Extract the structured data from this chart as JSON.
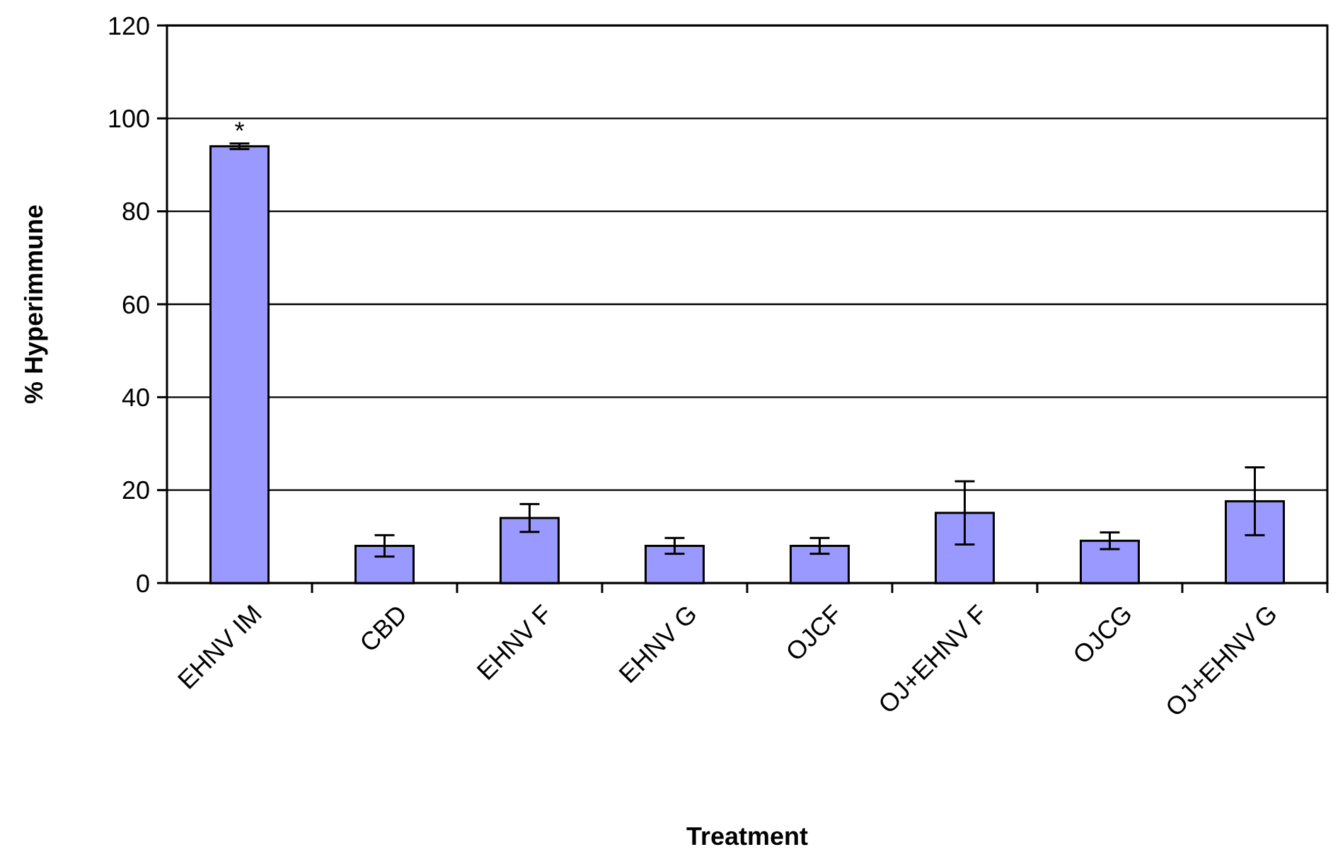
{
  "chart_data": {
    "type": "bar",
    "xlabel": "Treatment",
    "ylabel": "% Hyperimmune",
    "categories": [
      "EHNV IM",
      "CBD",
      "EHNV F",
      "EHNV G",
      "OJCF",
      "OJ+EHNV F",
      "OJCG",
      "OJ+EHNV G"
    ],
    "values": [
      94,
      8,
      14,
      8,
      8,
      15.1,
      9.1,
      17.6
    ],
    "errors": [
      0.6,
      2.3,
      3,
      1.7,
      1.7,
      6.8,
      1.8,
      7.3
    ],
    "color": "#9999ff",
    "ylim": [
      0,
      120
    ],
    "yticks": [
      0,
      20,
      40,
      60,
      80,
      100,
      120
    ],
    "grid": "y",
    "annotations": [
      {
        "text": "*",
        "x": "EHNV IM",
        "y": 94.6
      }
    ]
  }
}
